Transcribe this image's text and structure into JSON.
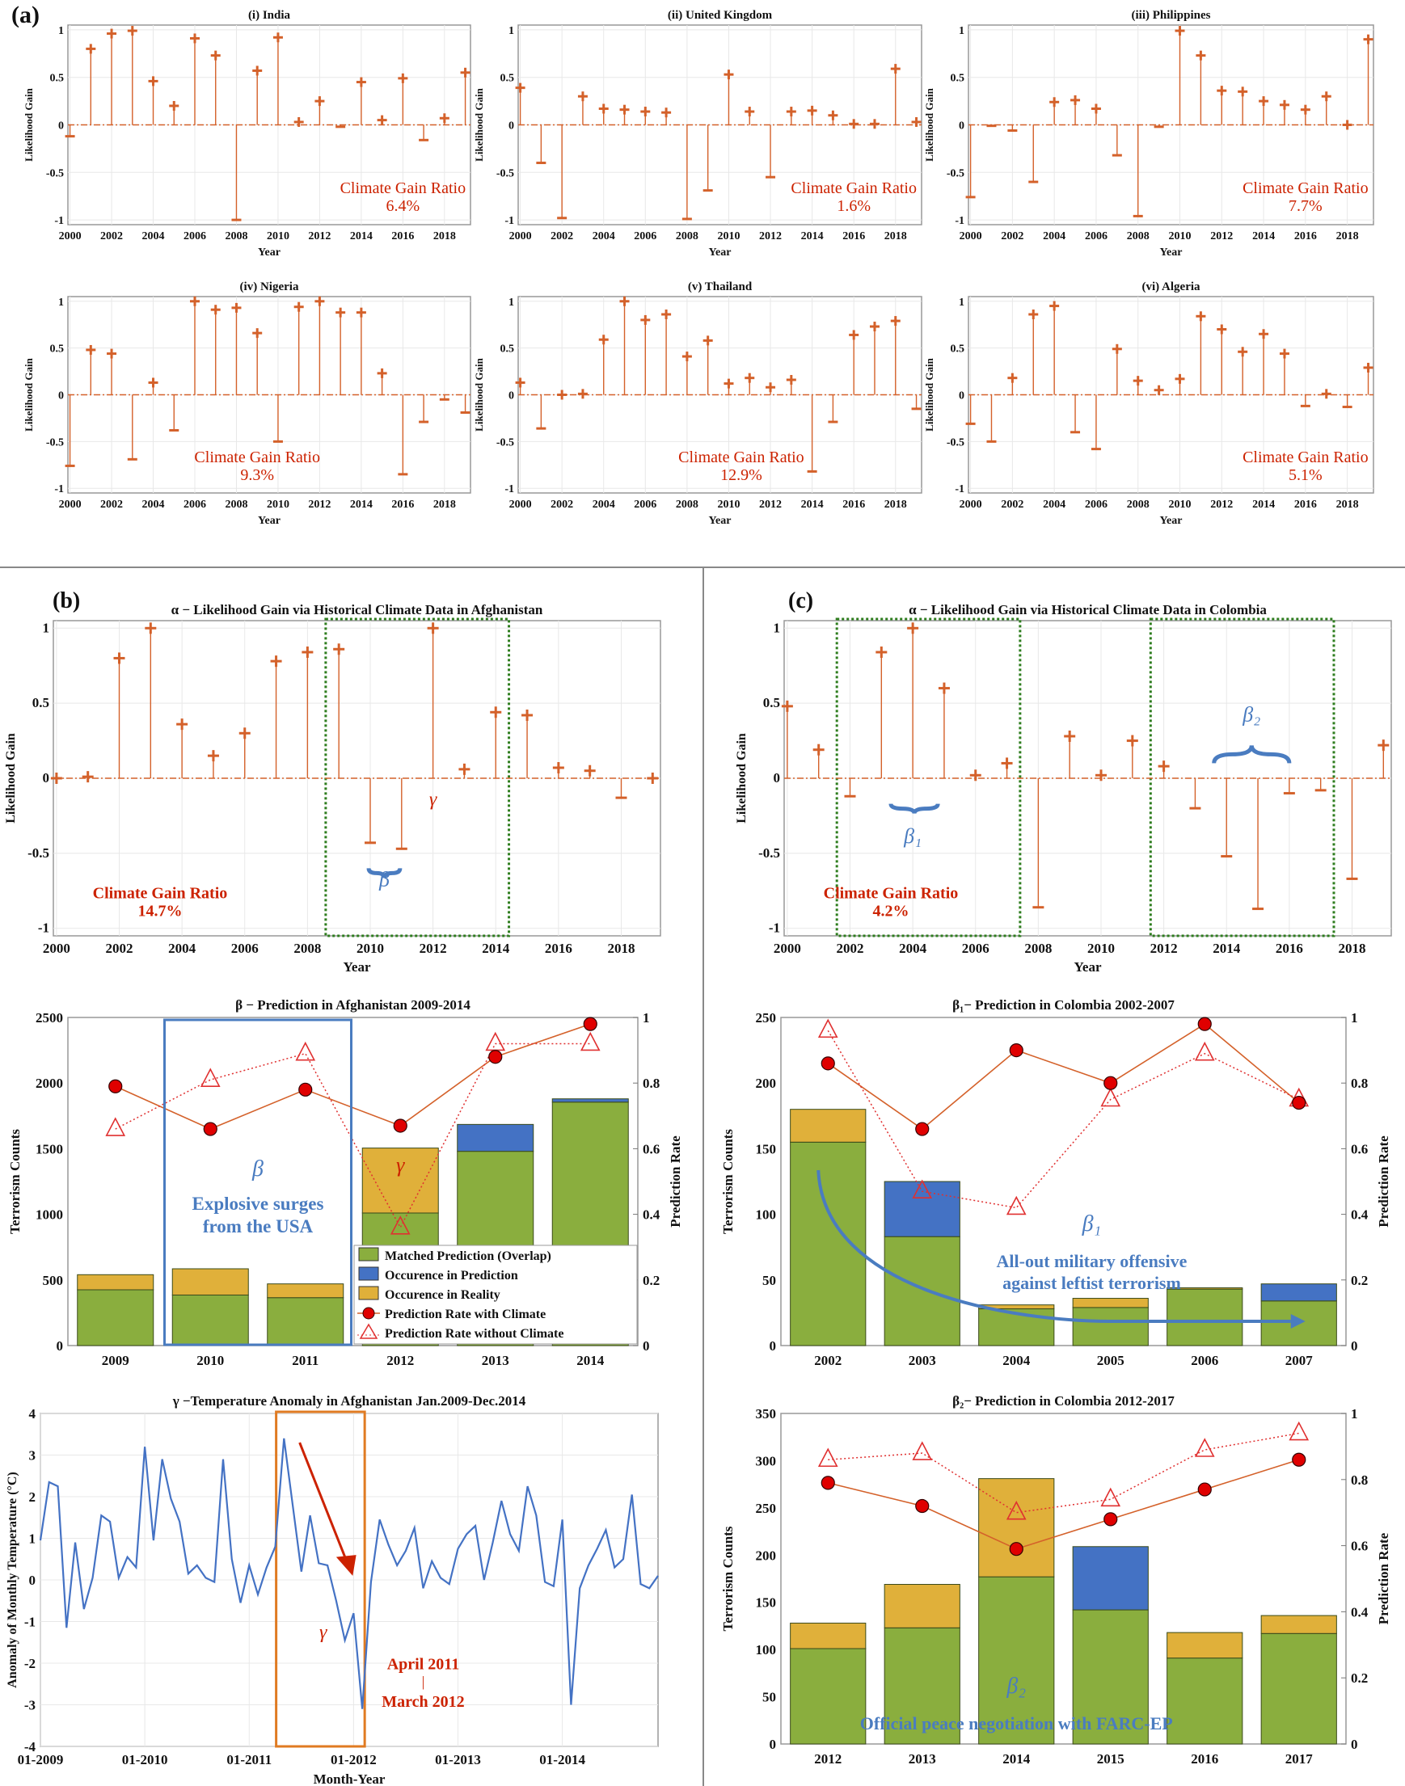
{
  "panel_labels": {
    "a": "(a)",
    "b": "(b)",
    "c": "(c)"
  },
  "colors": {
    "stem": "#D4612A",
    "matched": "#8AAE3E",
    "prediction": "#4472C4",
    "reality": "#E0B03A",
    "rate_with": "#E00000",
    "rate_without": "#E03030",
    "temperature": "#4472C4",
    "gain_ratio_text": "#CC2200",
    "annotation_blue": "#4A7CC0",
    "box_green": "#2E7D1E",
    "box_orange": "#E07B22"
  },
  "chart_data": [
    {
      "type": "stem",
      "title": "(i) India",
      "xlabel": "Year",
      "ylabel": "Likelihood Gain",
      "xlim": [
        1999.9,
        2019.25
      ],
      "ylim": [
        -1.05,
        1.05
      ],
      "grid": true,
      "xticks": [
        "2000",
        "2002",
        "2004",
        "2006",
        "2008",
        "2010",
        "2012",
        "2014",
        "2016",
        "2018"
      ],
      "yticks": [
        "-1",
        "-0.5",
        "0",
        "0.5",
        "1"
      ],
      "x": [
        2000,
        2001,
        2002,
        2003,
        2004,
        2005,
        2006,
        2007,
        2008,
        2009,
        2010,
        2011,
        2012,
        2013,
        2014,
        2015,
        2016,
        2017,
        2018,
        2019
      ],
      "y": [
        -0.12,
        0.8,
        0.96,
        0.99,
        0.46,
        0.2,
        0.91,
        0.73,
        -1.0,
        0.57,
        0.92,
        0.03,
        0.25,
        -0.02,
        0.45,
        0.05,
        0.49,
        -0.16,
        0.07,
        0.55
      ],
      "annotation": {
        "label": "Climate Gain Ratio",
        "value": "6.4%"
      }
    },
    {
      "type": "stem",
      "title": "(ii) United Kingdom",
      "xlabel": "Year",
      "ylabel": "Likelihood Gain",
      "xlim": [
        1999.9,
        2019.25
      ],
      "ylim": [
        -1.05,
        1.05
      ],
      "grid": true,
      "xticks": [
        "2000",
        "2002",
        "2004",
        "2006",
        "2008",
        "2010",
        "2012",
        "2014",
        "2016",
        "2018"
      ],
      "yticks": [
        "-1",
        "-0.5",
        "0",
        "0.5",
        "1"
      ],
      "x": [
        2000,
        2001,
        2002,
        2003,
        2004,
        2005,
        2006,
        2007,
        2008,
        2009,
        2010,
        2011,
        2012,
        2013,
        2014,
        2015,
        2016,
        2017,
        2018,
        2019
      ],
      "y": [
        0.39,
        -0.4,
        -0.98,
        0.3,
        0.17,
        0.16,
        0.14,
        0.13,
        -0.99,
        -0.69,
        0.53,
        0.14,
        -0.55,
        0.14,
        0.15,
        0.1,
        0.01,
        0.01,
        0.59,
        0.03
      ],
      "annotation": {
        "label": "Climate Gain Ratio",
        "value": "1.6%"
      }
    },
    {
      "type": "stem",
      "title": "(iii) Philippines",
      "xlabel": "Year",
      "ylabel": "Likelihood Gain",
      "xlim": [
        1999.9,
        2019.25
      ],
      "ylim": [
        -1.05,
        1.05
      ],
      "grid": true,
      "xticks": [
        "2000",
        "2002",
        "2004",
        "2006",
        "2008",
        "2010",
        "2012",
        "2014",
        "2016",
        "2018"
      ],
      "yticks": [
        "-1",
        "-0.5",
        "0",
        "0.5",
        "1"
      ],
      "x": [
        2000,
        2001,
        2002,
        2003,
        2004,
        2005,
        2006,
        2007,
        2008,
        2009,
        2010,
        2011,
        2012,
        2013,
        2014,
        2015,
        2016,
        2017,
        2018,
        2019
      ],
      "y": [
        -0.76,
        -0.01,
        -0.06,
        -0.6,
        0.24,
        0.26,
        0.17,
        -0.32,
        -0.96,
        -0.02,
        0.99,
        0.73,
        0.36,
        0.35,
        0.25,
        0.21,
        0.16,
        0.3,
        0.0,
        0.9
      ],
      "annotation": {
        "label": "Climate Gain Ratio",
        "value": "7.7%"
      }
    },
    {
      "type": "stem",
      "title": "(iv) Nigeria",
      "xlabel": "Year",
      "ylabel": "Likelihood Gain",
      "xlim": [
        1999.9,
        2019.25
      ],
      "ylim": [
        -1.05,
        1.05
      ],
      "grid": true,
      "xticks": [
        "2000",
        "2002",
        "2004",
        "2006",
        "2008",
        "2010",
        "2012",
        "2014",
        "2016",
        "2018"
      ],
      "yticks": [
        "-1",
        "-0.5",
        "0",
        "0.5",
        "1"
      ],
      "x": [
        2000,
        2001,
        2002,
        2003,
        2004,
        2005,
        2006,
        2007,
        2008,
        2009,
        2010,
        2011,
        2012,
        2013,
        2014,
        2015,
        2016,
        2017,
        2018,
        2019
      ],
      "y": [
        -0.76,
        0.48,
        0.44,
        -0.69,
        0.13,
        -0.38,
        1.0,
        0.91,
        0.93,
        0.66,
        -0.5,
        0.94,
        1.0,
        0.88,
        0.88,
        0.23,
        -0.85,
        -0.29,
        -0.05,
        -0.19
      ],
      "annotation": {
        "label": "Climate Gain Ratio",
        "value": "9.3%"
      }
    },
    {
      "type": "stem",
      "title": "(v) Thailand",
      "xlabel": "Year",
      "ylabel": "Likelihood Gain",
      "xlim": [
        1999.9,
        2019.25
      ],
      "ylim": [
        -1.05,
        1.05
      ],
      "grid": true,
      "xticks": [
        "2000",
        "2002",
        "2004",
        "2006",
        "2008",
        "2010",
        "2012",
        "2014",
        "2016",
        "2018"
      ],
      "yticks": [
        "-1",
        "-0.5",
        "0",
        "0.5",
        "1"
      ],
      "x": [
        2000,
        2001,
        2002,
        2003,
        2004,
        2005,
        2006,
        2007,
        2008,
        2009,
        2010,
        2011,
        2012,
        2013,
        2014,
        2015,
        2016,
        2017,
        2018,
        2019
      ],
      "y": [
        0.13,
        -0.36,
        0.0,
        0.01,
        0.59,
        1.0,
        0.8,
        0.86,
        0.41,
        0.58,
        0.12,
        0.18,
        0.08,
        0.16,
        -0.82,
        -0.29,
        0.64,
        0.73,
        0.79,
        -0.15
      ],
      "annotation": {
        "label": "Climate Gain Ratio",
        "value": "12.9%"
      }
    },
    {
      "type": "stem",
      "title": "(vi) Algeria",
      "xlabel": "Year",
      "ylabel": "Likelihood Gain",
      "xlim": [
        1999.9,
        2019.25
      ],
      "ylim": [
        -1.05,
        1.05
      ],
      "grid": true,
      "xticks": [
        "2000",
        "2002",
        "2004",
        "2006",
        "2008",
        "2010",
        "2012",
        "2014",
        "2016",
        "2018"
      ],
      "yticks": [
        "-1",
        "-0.5",
        "0",
        "0.5",
        "1"
      ],
      "x": [
        2000,
        2001,
        2002,
        2003,
        2004,
        2005,
        2006,
        2007,
        2008,
        2009,
        2010,
        2011,
        2012,
        2013,
        2014,
        2015,
        2016,
        2017,
        2018,
        2019
      ],
      "y": [
        -0.31,
        -0.5,
        0.18,
        0.86,
        0.95,
        -0.4,
        -0.58,
        0.49,
        0.15,
        0.05,
        0.17,
        0.84,
        0.7,
        0.46,
        0.65,
        0.44,
        -0.12,
        0.01,
        -0.13,
        0.29
      ],
      "annotation": {
        "label": "Climate Gain Ratio",
        "value": "5.1%"
      }
    },
    {
      "type": "stem",
      "title": "α − Likelihood Gain via Historical Climate Data in Afghanistan",
      "xlabel": "Year",
      "ylabel": "Likelihood Gain",
      "xlim": [
        1999.9,
        2019.25
      ],
      "ylim": [
        -1.05,
        1.05
      ],
      "grid": true,
      "xticks": [
        "2000",
        "2002",
        "2004",
        "2006",
        "2008",
        "2010",
        "2012",
        "2014",
        "2016",
        "2018"
      ],
      "yticks": [
        "-1",
        "-0.5",
        "0",
        "0.5",
        "1"
      ],
      "x": [
        2000,
        2001,
        2002,
        2003,
        2004,
        2005,
        2006,
        2007,
        2008,
        2009,
        2010,
        2011,
        2012,
        2013,
        2014,
        2015,
        2016,
        2017,
        2018,
        2019
      ],
      "y": [
        0.0,
        0.01,
        0.8,
        1.0,
        0.36,
        0.15,
        0.3,
        0.78,
        0.84,
        0.86,
        -0.43,
        -0.47,
        1.0,
        0.06,
        0.44,
        0.42,
        0.07,
        0.05,
        -0.13,
        0.0
      ],
      "annotation": {
        "label": "Climate Gain Ratio",
        "value": "14.7%"
      },
      "highlights": [
        {
          "from": 2009,
          "to": 2014
        }
      ],
      "markers": {
        "beta": "β",
        "gamma": "γ"
      }
    },
    {
      "type": "stem",
      "title": "α − Likelihood Gain via Historical Climate Data in Colombia",
      "xlabel": "Year",
      "ylabel": "Likelihood Gain",
      "xlim": [
        1999.9,
        2019.25
      ],
      "ylim": [
        -1.05,
        1.05
      ],
      "grid": true,
      "xticks": [
        "2000",
        "2002",
        "2004",
        "2006",
        "2008",
        "2010",
        "2012",
        "2014",
        "2016",
        "2018"
      ],
      "yticks": [
        "-1",
        "-0.5",
        "0",
        "0.5",
        "1"
      ],
      "x": [
        2000,
        2001,
        2002,
        2003,
        2004,
        2005,
        2006,
        2007,
        2008,
        2009,
        2010,
        2011,
        2012,
        2013,
        2014,
        2015,
        2016,
        2017,
        2018,
        2019
      ],
      "y": [
        0.48,
        0.19,
        -0.12,
        0.84,
        1.0,
        0.6,
        0.02,
        0.1,
        -0.86,
        0.28,
        0.02,
        0.25,
        0.08,
        -0.2,
        -0.52,
        -0.87,
        -0.1,
        -0.08,
        -0.67,
        0.22
      ],
      "annotation": {
        "label": "Climate Gain Ratio",
        "value": "4.2%"
      },
      "highlights": [
        {
          "from": 2002,
          "to": 2007
        },
        {
          "from": 2012,
          "to": 2017
        }
      ],
      "markers": {
        "beta1": "β₁",
        "beta2": "β₂"
      }
    },
    {
      "type": "bar",
      "title": "β − Prediction in Afghanistan 2009-2014",
      "ylabel": "Terrorism Counts",
      "y2label": "Prediction Rate",
      "categories": [
        "2009",
        "2010",
        "2011",
        "2012",
        "2013",
        "2014"
      ],
      "ylim": [
        0,
        2500
      ],
      "yticks": [
        "0",
        "500",
        "1000",
        "1500",
        "2000",
        "2500"
      ],
      "y2lim": [
        0,
        1
      ],
      "y2ticks": [
        "0",
        "0.2",
        "0.4",
        "0.6",
        "0.8",
        "1"
      ],
      "series": [
        {
          "name": "Matched Prediction (Overlap)",
          "values": [
            425,
            385,
            365,
            1010,
            1480,
            1855
          ]
        },
        {
          "name": "Occurence in Prediction",
          "values": [
            0,
            0,
            0,
            0,
            205,
            25
          ]
        },
        {
          "name": "Occurence in Reality",
          "values": [
            115,
            200,
            105,
            495,
            0,
            0
          ]
        },
        {
          "name": "Prediction Rate with Climate",
          "values": [
            0.79,
            0.66,
            0.78,
            0.67,
            0.88,
            0.98
          ]
        },
        {
          "name": "Prediction Rate without Climate",
          "values": [
            0.66,
            0.81,
            0.89,
            0.36,
            0.92,
            0.92
          ]
        }
      ],
      "legend": "bottom-right",
      "notes": {
        "symbol": "β",
        "line1": "Explosive surges",
        "line2": "from the USA",
        "gamma": "γ"
      }
    },
    {
      "type": "line",
      "title": "γ −Temperature Anomaly in Afghanistan Jan.2009-Dec.2014",
      "xlabel": "Month-Year",
      "ylabel": "Anomaly of Monthly Temperature (°C)",
      "ylim": [
        -4,
        4
      ],
      "yticks": [
        "-4",
        "-3",
        "-2",
        "-1",
        "0",
        "1",
        "2",
        "3",
        "4"
      ],
      "xticks": [
        "01-2009",
        "01-2010",
        "01-2011",
        "01-2012",
        "01-2013",
        "01-2014"
      ],
      "grid": true,
      "x": [
        "01-2009",
        "02-2009",
        "03-2009",
        "04-2009",
        "05-2009",
        "06-2009",
        "07-2009",
        "08-2009",
        "09-2009",
        "10-2009",
        "11-2009",
        "12-2009",
        "01-2010",
        "02-2010",
        "03-2010",
        "04-2010",
        "05-2010",
        "06-2010",
        "07-2010",
        "08-2010",
        "09-2010",
        "10-2010",
        "11-2010",
        "12-2010",
        "01-2011",
        "02-2011",
        "03-2011",
        "04-2011",
        "05-2011",
        "06-2011",
        "07-2011",
        "08-2011",
        "09-2011",
        "10-2011",
        "11-2011",
        "12-2011",
        "01-2012",
        "02-2012",
        "03-2012",
        "04-2012",
        "05-2012",
        "06-2012",
        "07-2012",
        "08-2012",
        "09-2012",
        "10-2012",
        "11-2012",
        "12-2012",
        "01-2013",
        "02-2013",
        "03-2013",
        "04-2013",
        "05-2013",
        "06-2013",
        "07-2013",
        "08-2013",
        "09-2013",
        "10-2013",
        "11-2013",
        "12-2013",
        "01-2014",
        "02-2014",
        "03-2014",
        "04-2014",
        "05-2014",
        "06-2014",
        "07-2014",
        "08-2014",
        "09-2014",
        "10-2014",
        "11-2014",
        "12-2014"
      ],
      "y": [
        0.95,
        2.35,
        2.25,
        -1.15,
        0.9,
        -0.7,
        0.05,
        1.55,
        1.4,
        0.05,
        0.55,
        0.3,
        3.2,
        0.95,
        2.9,
        1.95,
        1.4,
        0.15,
        0.35,
        0.05,
        -0.05,
        2.9,
        0.5,
        -0.55,
        0.35,
        -0.35,
        0.3,
        0.8,
        3.4,
        1.8,
        0.2,
        1.55,
        0.4,
        0.35,
        -0.5,
        -1.45,
        -0.8,
        -3.1,
        -0.05,
        1.45,
        0.85,
        0.35,
        0.7,
        1.25,
        -0.2,
        0.45,
        0.05,
        -0.1,
        0.75,
        1.1,
        1.3,
        0.0,
        0.9,
        1.9,
        1.1,
        0.7,
        2.25,
        1.55,
        -0.05,
        -0.15,
        1.45,
        -3.0,
        -0.2,
        0.35,
        0.75,
        1.2,
        0.3,
        0.5,
        2.05,
        -0.1,
        -0.2,
        0.1
      ],
      "highlight": {
        "from": "04-2011",
        "to": "02-2012"
      },
      "notes": {
        "gamma": "γ",
        "line1": "April 2011",
        "sep": "|",
        "line2": "March 2012"
      }
    },
    {
      "type": "bar",
      "title": "β₁− Prediction in Colombia 2002-2007",
      "ylabel": "Terrorism Counts",
      "y2label": "Prediction Rate",
      "categories": [
        "2002",
        "2003",
        "2004",
        "2005",
        "2006",
        "2007"
      ],
      "ylim": [
        0,
        250
      ],
      "yticks": [
        "0",
        "50",
        "100",
        "150",
        "200",
        "250"
      ],
      "y2lim": [
        0,
        1
      ],
      "y2ticks": [
        "0",
        "0.2",
        "0.4",
        "0.6",
        "0.8",
        "1"
      ],
      "series": [
        {
          "name": "Matched Prediction (Overlap)",
          "values": [
            155,
            83,
            28,
            29,
            43,
            34
          ]
        },
        {
          "name": "Occurence in Prediction",
          "values": [
            0,
            42,
            0,
            0,
            0,
            13
          ]
        },
        {
          "name": "Occurence in Reality",
          "values": [
            25,
            0,
            3,
            7,
            1,
            0
          ]
        },
        {
          "name": "Prediction Rate with Climate",
          "values": [
            0.86,
            0.66,
            0.9,
            0.8,
            0.98,
            0.74
          ]
        },
        {
          "name": "Prediction Rate without Climate",
          "values": [
            0.96,
            0.47,
            0.42,
            0.75,
            0.89,
            0.75
          ]
        }
      ],
      "notes": {
        "symbol": "β₁",
        "line1": "All-out military offensive",
        "line2": "against leftist terrorism"
      }
    },
    {
      "type": "bar",
      "title": "β₂− Prediction in Colombia 2012-2017",
      "ylabel": "Terrorism Counts",
      "y2label": "Prediction Rate",
      "categories": [
        "2012",
        "2013",
        "2014",
        "2015",
        "2016",
        "2017"
      ],
      "ylim": [
        0,
        350
      ],
      "yticks": [
        "0",
        "50",
        "100",
        "150",
        "200",
        "250",
        "300",
        "350"
      ],
      "y2lim": [
        0,
        1
      ],
      "y2ticks": [
        "0",
        "0.2",
        "0.4",
        "0.6",
        "0.8",
        "1"
      ],
      "series": [
        {
          "name": "Matched Prediction (Overlap)",
          "values": [
            101,
            123,
            177,
            142,
            91,
            117
          ]
        },
        {
          "name": "Occurence in Prediction",
          "values": [
            0,
            0,
            0,
            67,
            0,
            0
          ]
        },
        {
          "name": "Occurence in Reality",
          "values": [
            27,
            46,
            104,
            0,
            27,
            19
          ]
        },
        {
          "name": "Prediction Rate with Climate",
          "values": [
            0.79,
            0.72,
            0.59,
            0.68,
            0.77,
            0.86
          ]
        },
        {
          "name": "Prediction Rate without Climate",
          "values": [
            0.86,
            0.88,
            0.7,
            0.74,
            0.89,
            0.94
          ]
        }
      ],
      "notes": {
        "symbol": "β₂",
        "line1": "Official peace negotiation with FARC-EP"
      }
    }
  ]
}
